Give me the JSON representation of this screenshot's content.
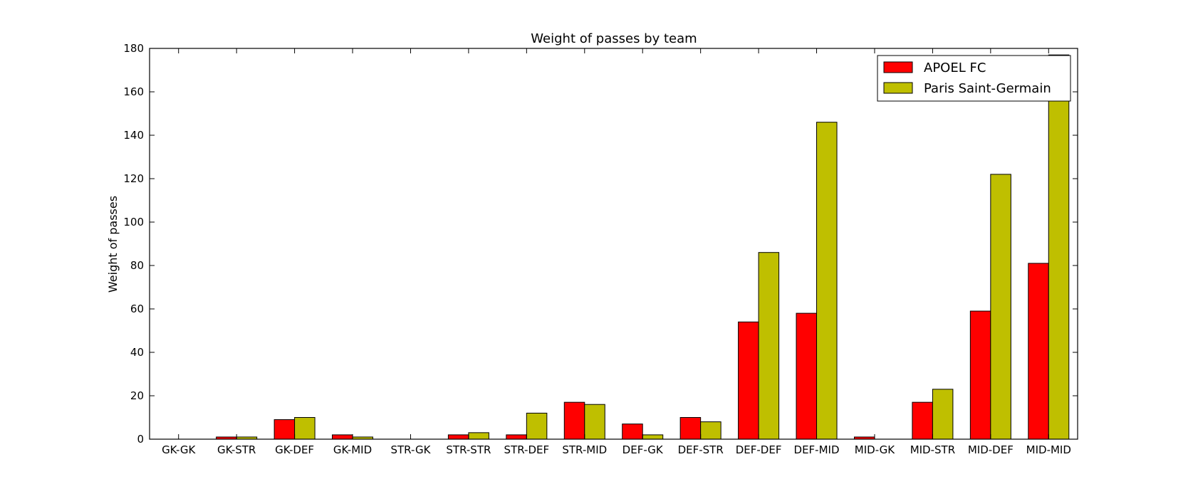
{
  "chart_data": {
    "type": "bar",
    "title": "Weight of passes by team",
    "xlabel": "",
    "ylabel": "Weight of passes",
    "ylim": [
      0,
      180
    ],
    "yticks": [
      "0",
      "20",
      "40",
      "60",
      "80",
      "100",
      "120",
      "140",
      "160",
      "180"
    ],
    "categories": [
      "GK-GK",
      "GK-STR",
      "GK-DEF",
      "GK-MID",
      "STR-GK",
      "STR-STR",
      "STR-DEF",
      "STR-MID",
      "DEF-GK",
      "DEF-STR",
      "DEF-DEF",
      "DEF-MID",
      "MID-GK",
      "MID-STR",
      "MID-DEF",
      "MID-MID"
    ],
    "series": [
      {
        "name": "APOEL FC",
        "color": "#ff0000",
        "values": [
          0,
          1,
          9,
          2,
          0,
          2,
          2,
          17,
          7,
          10,
          54,
          58,
          1,
          17,
          59,
          81
        ]
      },
      {
        "name": "Paris Saint-Germain",
        "color": "#bfbf00",
        "values": [
          0,
          1,
          10,
          1,
          0,
          3,
          12,
          16,
          2,
          8,
          86,
          146,
          0,
          23,
          122,
          177
        ]
      }
    ],
    "legend_position": "top-right",
    "grid": false
  }
}
